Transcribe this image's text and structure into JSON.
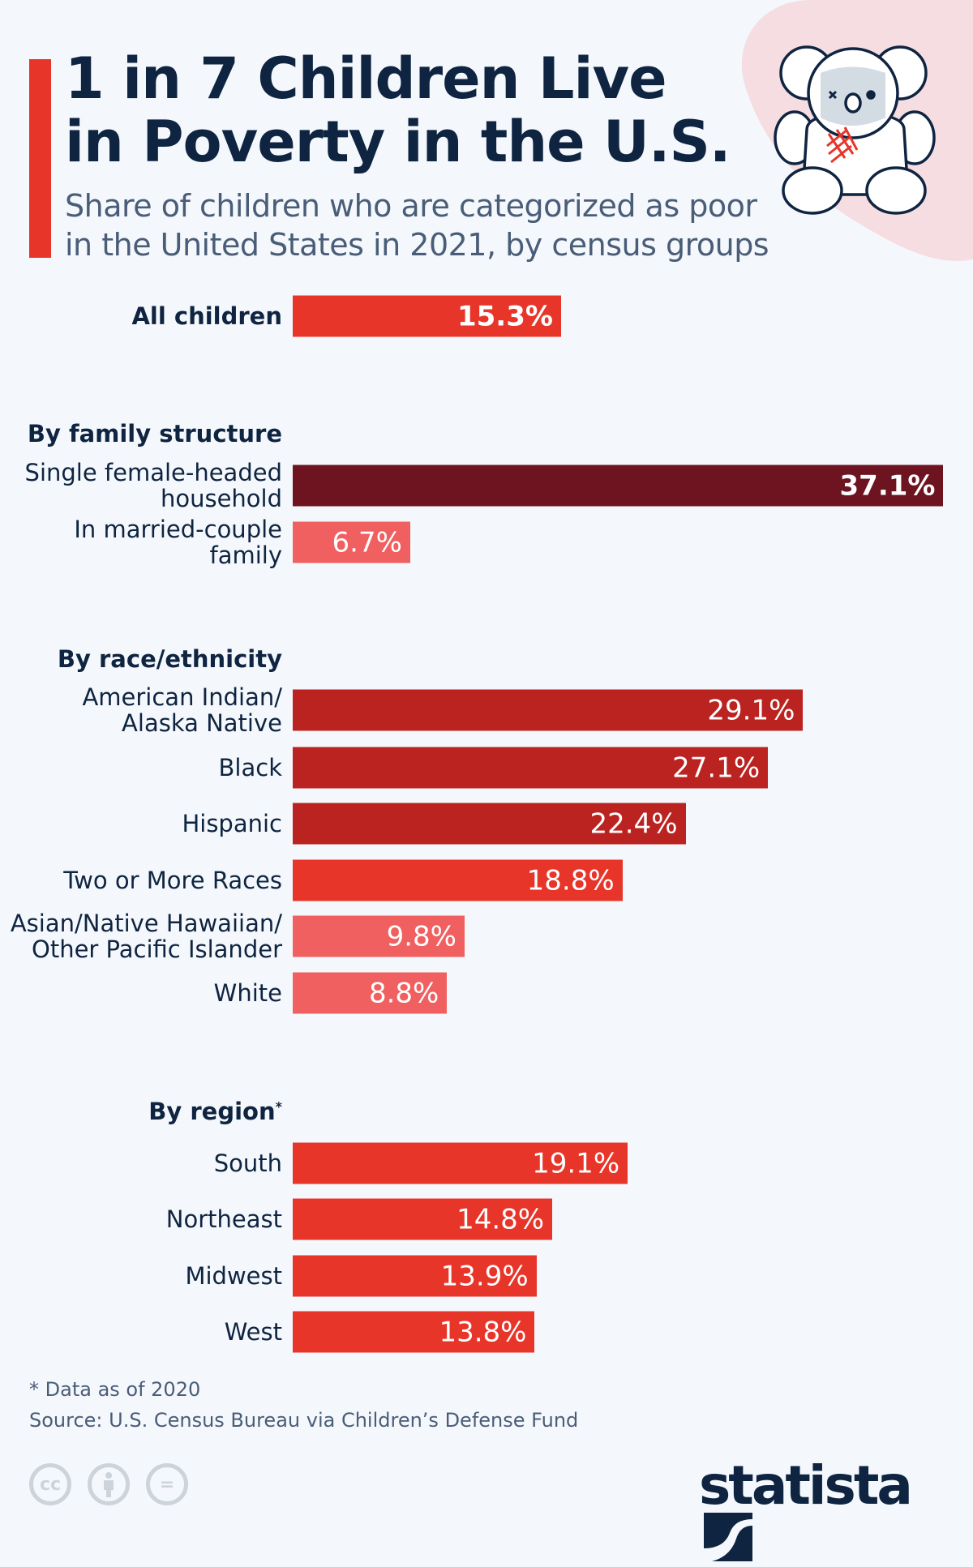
{
  "title_line1": "1 in 7 Children Live",
  "title_line2": "in Poverty in the U.S.",
  "subtitle_line1": "Share of children who are categorized as poor",
  "subtitle_line2": "in the United States in 2021, by census groups",
  "footnote": "* Data as of 2020",
  "source": "Source: U.S. Census Bureau via Children’s Defense Fund",
  "license_icons": [
    "cc-icon",
    "attribution-icon",
    "no-derivatives-icon"
  ],
  "license_text": {
    "cc": "cc",
    "eq": "="
  },
  "brand": "statista",
  "colors": {
    "red": "#e8352a",
    "dark": "#6d1420",
    "darkred": "#bb2320",
    "light": "#f06060",
    "navy": "#0f2440"
  },
  "chart_data": {
    "type": "bar",
    "orientation": "horizontal",
    "unit": "%",
    "groups": [
      {
        "header": "",
        "rows": [
          {
            "label": [
              "All children"
            ],
            "value": 15.3,
            "display": "15.3%",
            "color": "#e8352a",
            "bold": true
          }
        ]
      },
      {
        "header": "By family structure",
        "rows": [
          {
            "label": [
              "Single female-headed",
              "household"
            ],
            "value": 37.1,
            "display": "37.1%",
            "color": "#6d1420",
            "bold": true
          },
          {
            "label": [
              "In married-couple",
              "family"
            ],
            "value": 6.7,
            "display": "6.7%",
            "color": "#f06060"
          }
        ]
      },
      {
        "header": "By race/ethnicity",
        "rows": [
          {
            "label": [
              "American Indian/",
              "Alaska Native"
            ],
            "value": 29.1,
            "display": "29.1%",
            "color": "#bb2320"
          },
          {
            "label": [
              "Black"
            ],
            "value": 27.1,
            "display": "27.1%",
            "color": "#bb2320"
          },
          {
            "label": [
              "Hispanic"
            ],
            "value": 22.4,
            "display": "22.4%",
            "color": "#bb2320"
          },
          {
            "label": [
              "Two or More Races"
            ],
            "value": 18.8,
            "display": "18.8%",
            "color": "#e8352a"
          },
          {
            "label": [
              "Asian/Native Hawaiian/",
              "Other Pacific Islander"
            ],
            "value": 9.8,
            "display": "9.8%",
            "color": "#f06060"
          },
          {
            "label": [
              "White"
            ],
            "value": 8.8,
            "display": "8.8%",
            "color": "#f06060"
          }
        ]
      },
      {
        "header": "By region",
        "header_mark": "*",
        "rows": [
          {
            "label": [
              "South"
            ],
            "value": 19.1,
            "display": "19.1%",
            "color": "#e8352a"
          },
          {
            "label": [
              "Northeast"
            ],
            "value": 14.8,
            "display": "14.8%",
            "color": "#e8352a"
          },
          {
            "label": [
              "Midwest"
            ],
            "value": 13.9,
            "display": "13.9%",
            "color": "#e8352a"
          },
          {
            "label": [
              "West"
            ],
            "value": 13.8,
            "display": "13.8%",
            "color": "#e8352a"
          }
        ]
      }
    ]
  }
}
